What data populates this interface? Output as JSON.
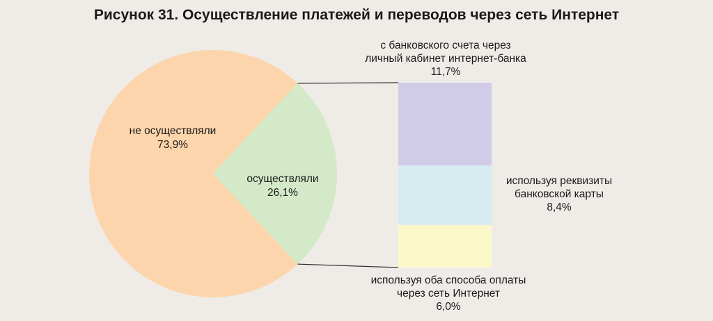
{
  "chart_data": {
    "type": "pie",
    "title": "Рисунок 31. Осуществление платежей и переводов через сеть Интернет",
    "pie": {
      "slices": [
        {
          "label": "не осуществляли",
          "value": 73.9,
          "value_label": "73,9%",
          "color": "#fdd5ac"
        },
        {
          "label": "осуществляли",
          "value": 26.1,
          "value_label": "26,1%",
          "color": "#d4e9c7"
        }
      ]
    },
    "breakdown": {
      "of": "осуществляли",
      "type": "stacked-bar",
      "segments": [
        {
          "label_lines": [
            "с банковского счета через",
            "личный кабинет интернет-банка"
          ],
          "value": 11.7,
          "value_label": "11,7%",
          "color": "#d0cce8"
        },
        {
          "label_lines": [
            "используя реквизиты",
            "банковской карты"
          ],
          "value": 8.4,
          "value_label": "8,4%",
          "color": "#d6ecf0"
        },
        {
          "label_lines": [
            "используя оба способа оплаты",
            "через сеть Интернет"
          ],
          "value": 6.0,
          "value_label": "6,0%",
          "color": "#fbf8ca"
        }
      ]
    },
    "connector_color": "#333333",
    "background": "#efece7"
  }
}
